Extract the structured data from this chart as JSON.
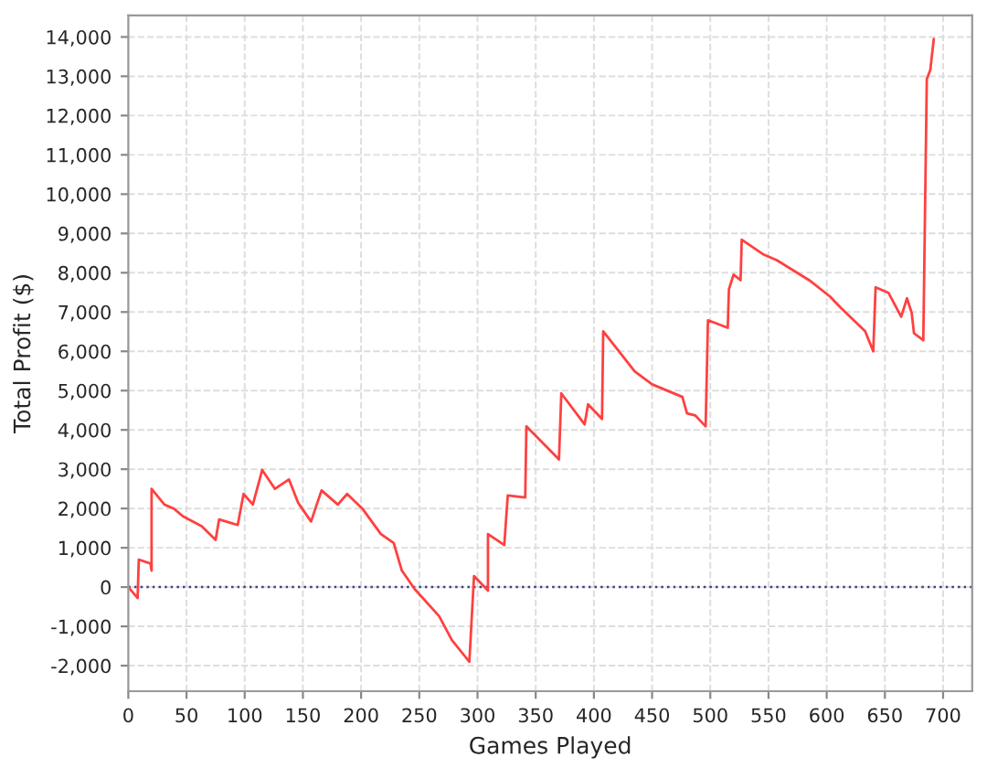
{
  "chart_data": {
    "type": "line",
    "xlabel": "Games Played",
    "ylabel": "Total Profit ($)",
    "xlim": [
      0,
      725
    ],
    "ylim": [
      -2650,
      14550
    ],
    "xticks": [
      0,
      50,
      100,
      150,
      200,
      250,
      300,
      350,
      400,
      450,
      500,
      550,
      600,
      650,
      700
    ],
    "yticks": [
      {
        "value": -2000,
        "label": "-2,000"
      },
      {
        "value": -1000,
        "label": "-1,000"
      },
      0,
      {
        "value": 1000,
        "label": "1,000"
      },
      {
        "value": 2000,
        "label": "2,000"
      },
      {
        "value": 3000,
        "label": "3,000"
      },
      {
        "value": 4000,
        "label": "4,000"
      },
      {
        "value": 5000,
        "label": "5,000"
      },
      {
        "value": 6000,
        "label": "6,000"
      },
      {
        "value": 7000,
        "label": "7,000"
      },
      {
        "value": 8000,
        "label": "8,000"
      },
      {
        "value": 9000,
        "label": "9,000"
      },
      {
        "value": 10000,
        "label": "10,000"
      },
      {
        "value": 11000,
        "label": "11,000"
      },
      {
        "value": 12000,
        "label": "12,000"
      },
      {
        "value": 13000,
        "label": "13,000"
      },
      {
        "value": 14000,
        "label": "14,000"
      }
    ],
    "grid": true,
    "marker": "none",
    "line_style": "solid",
    "ref_lines": [
      {
        "axis": "y",
        "value": 0,
        "color": "#404080",
        "line_style": "dotted"
      }
    ],
    "series": [
      {
        "color": "#ff4040",
        "x": [
          0,
          8,
          9,
          19,
          20,
          20,
          31,
          39,
          47,
          63,
          75,
          78,
          94,
          99,
          107,
          115,
          126,
          138,
          146,
          157,
          166,
          180,
          188,
          201,
          217,
          228,
          235,
          246,
          267,
          278,
          293,
          297,
          309,
          309,
          323,
          326,
          341,
          342,
          370,
          372,
          392,
          395,
          407,
          408,
          435,
          450,
          476,
          480,
          487,
          496,
          498,
          515,
          516,
          520,
          526,
          527,
          546,
          557,
          585,
          603,
          612,
          633,
          640,
          642,
          653,
          664,
          669,
          673,
          675,
          683,
          686,
          689,
          692
        ],
        "values": [
          0,
          -280,
          700,
          600,
          420,
          2500,
          2100,
          2000,
          1800,
          1550,
          1200,
          1720,
          1580,
          2370,
          2100,
          2980,
          2500,
          2740,
          2140,
          1670,
          2460,
          2100,
          2370,
          2000,
          1350,
          1120,
          420,
          -50,
          -740,
          -1350,
          -1900,
          280,
          -90,
          1350,
          1070,
          2330,
          2280,
          4090,
          3250,
          4930,
          4140,
          4650,
          4280,
          6510,
          5490,
          5160,
          4840,
          4420,
          4370,
          4090,
          6790,
          6600,
          7580,
          7950,
          7810,
          8840,
          8460,
          8320,
          7810,
          7390,
          7110,
          6510,
          6000,
          7630,
          7490,
          6880,
          7350,
          6980,
          6460,
          6280,
          12930,
          13160,
          13950
        ]
      }
    ]
  }
}
